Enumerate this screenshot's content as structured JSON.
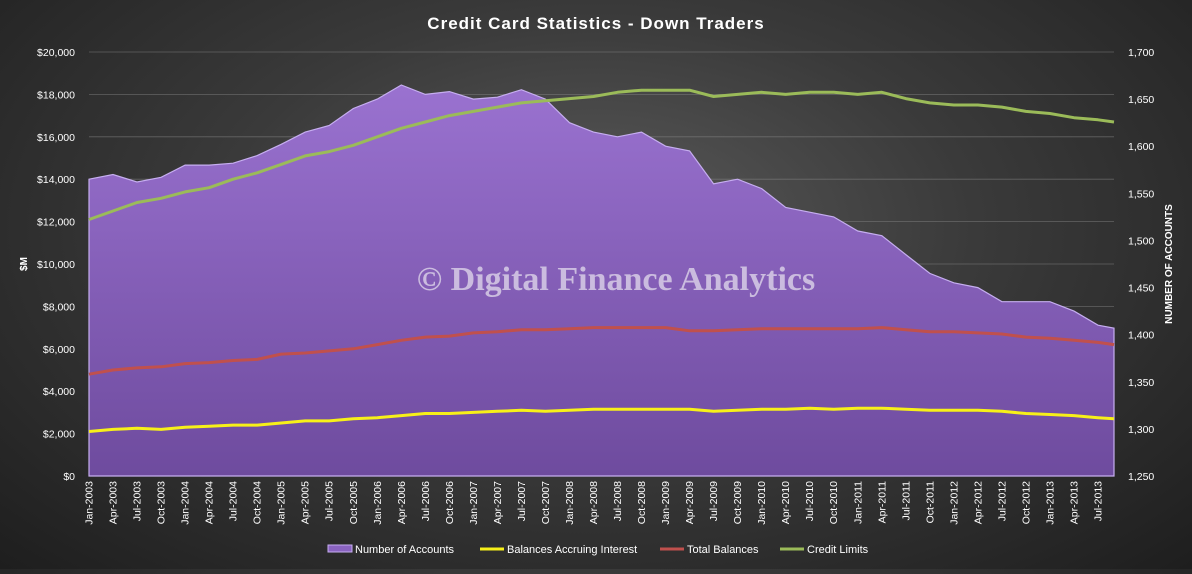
{
  "chart_data": {
    "type": "line",
    "title": "Credit Card Statistics  - Down Traders",
    "ylabel_left": "$M",
    "ylabel_right": "NUMBER OF ACCOUNTS",
    "ylim_left": [
      0,
      20000
    ],
    "ylim_right": [
      1250,
      1700
    ],
    "yticks_left": [
      "$0",
      "$2,000",
      "$4,000",
      "$6,000",
      "$8,000",
      "$10,000",
      "$12,000",
      "$14,000",
      "$16,000",
      "$18,000",
      "$20,000"
    ],
    "yticks_right": [
      "1,250",
      "1,300",
      "1,350",
      "1,400",
      "1,450",
      "1,500",
      "1,550",
      "1,600",
      "1,650",
      "1,700"
    ],
    "xticks": [
      "Jan-2003",
      "Apr-2003",
      "Jul-2003",
      "Oct-2003",
      "Jan-2004",
      "Apr-2004",
      "Jul-2004",
      "Oct-2004",
      "Jan-2005",
      "Apr-2005",
      "Jul-2005",
      "Oct-2005",
      "Jan-2006",
      "Apr-2006",
      "Jul-2006",
      "Oct-2006",
      "Jan-2007",
      "Apr-2007",
      "Jul-2007",
      "Oct-2007",
      "Jan-2008",
      "Apr-2008",
      "Jul-2008",
      "Oct-2008",
      "Jan-2009",
      "Apr-2009",
      "Jul-2009",
      "Oct-2009",
      "Jan-2010",
      "Apr-2010",
      "Jul-2010",
      "Oct-2010",
      "Jan-2011",
      "Apr-2011",
      "Jul-2011",
      "Oct-2011",
      "Jan-2012",
      "Apr-2012",
      "Jul-2012",
      "Oct-2012",
      "Jan-2013",
      "Apr-2013",
      "Jul-2013"
    ],
    "grid": true,
    "legend_position": "bottom",
    "watermark": "© Digital Finance Analytics",
    "series": [
      {
        "name": "Number of Accounts",
        "kind": "area",
        "axis": "right",
        "color": "#8a63c0",
        "points": [
          [
            "Jan-2003",
            1565
          ],
          [
            "Apr-2003",
            1570
          ],
          [
            "Jul-2003",
            1562
          ],
          [
            "Oct-2003",
            1567
          ],
          [
            "Jan-2004",
            1580
          ],
          [
            "Apr-2004",
            1580
          ],
          [
            "Jul-2004",
            1582
          ],
          [
            "Oct-2004",
            1590
          ],
          [
            "Jan-2005",
            1602
          ],
          [
            "Apr-2005",
            1615
          ],
          [
            "Jul-2005",
            1622
          ],
          [
            "Oct-2005",
            1640
          ],
          [
            "Jan-2006",
            1650
          ],
          [
            "Apr-2006",
            1665
          ],
          [
            "Jul-2006",
            1655
          ],
          [
            "Oct-2006",
            1658
          ],
          [
            "Jan-2007",
            1650
          ],
          [
            "Apr-2007",
            1652
          ],
          [
            "Jul-2007",
            1660
          ],
          [
            "Oct-2007",
            1650
          ],
          [
            "Jan-2008",
            1625
          ],
          [
            "Apr-2008",
            1615
          ],
          [
            "Jul-2008",
            1610
          ],
          [
            "Oct-2008",
            1615
          ],
          [
            "Jan-2009",
            1600
          ],
          [
            "Apr-2009",
            1595
          ],
          [
            "Jul-2009",
            1560
          ],
          [
            "Oct-2009",
            1565
          ],
          [
            "Jan-2010",
            1555
          ],
          [
            "Apr-2010",
            1535
          ],
          [
            "Jul-2010",
            1530
          ],
          [
            "Oct-2010",
            1525
          ],
          [
            "Jan-2011",
            1510
          ],
          [
            "Apr-2011",
            1505
          ],
          [
            "Jul-2011",
            1485
          ],
          [
            "Oct-2011",
            1465
          ],
          [
            "Jan-2012",
            1455
          ],
          [
            "Apr-2012",
            1450
          ],
          [
            "Jul-2012",
            1435
          ],
          [
            "Oct-2012",
            1435
          ],
          [
            "Jan-2013",
            1435
          ],
          [
            "Apr-2013",
            1425
          ],
          [
            "Jul-2013",
            1410
          ],
          [
            "Sep-2013",
            1407
          ]
        ]
      },
      {
        "name": "Balances Accruing Interest",
        "kind": "line",
        "axis": "left",
        "color": "#f7f019",
        "points": [
          [
            "Jan-2003",
            2100
          ],
          [
            "Apr-2003",
            2200
          ],
          [
            "Jul-2003",
            2250
          ],
          [
            "Oct-2003",
            2200
          ],
          [
            "Jan-2004",
            2300
          ],
          [
            "Apr-2004",
            2350
          ],
          [
            "Jul-2004",
            2400
          ],
          [
            "Oct-2004",
            2400
          ],
          [
            "Jan-2005",
            2500
          ],
          [
            "Apr-2005",
            2600
          ],
          [
            "Jul-2005",
            2600
          ],
          [
            "Oct-2005",
            2700
          ],
          [
            "Jan-2006",
            2750
          ],
          [
            "Apr-2006",
            2850
          ],
          [
            "Jul-2006",
            2950
          ],
          [
            "Oct-2006",
            2950
          ],
          [
            "Jan-2007",
            3000
          ],
          [
            "Apr-2007",
            3050
          ],
          [
            "Jul-2007",
            3100
          ],
          [
            "Oct-2007",
            3050
          ],
          [
            "Jan-2008",
            3100
          ],
          [
            "Apr-2008",
            3150
          ],
          [
            "Jul-2008",
            3150
          ],
          [
            "Oct-2008",
            3150
          ],
          [
            "Jan-2009",
            3150
          ],
          [
            "Apr-2009",
            3150
          ],
          [
            "Jul-2009",
            3050
          ],
          [
            "Oct-2009",
            3100
          ],
          [
            "Jan-2010",
            3150
          ],
          [
            "Apr-2010",
            3150
          ],
          [
            "Jul-2010",
            3200
          ],
          [
            "Oct-2010",
            3150
          ],
          [
            "Jan-2011",
            3200
          ],
          [
            "Apr-2011",
            3200
          ],
          [
            "Jul-2011",
            3150
          ],
          [
            "Oct-2011",
            3100
          ],
          [
            "Jan-2012",
            3100
          ],
          [
            "Apr-2012",
            3100
          ],
          [
            "Jul-2012",
            3050
          ],
          [
            "Oct-2012",
            2950
          ],
          [
            "Jan-2013",
            2900
          ],
          [
            "Apr-2013",
            2850
          ],
          [
            "Jul-2013",
            2750
          ],
          [
            "Sep-2013",
            2700
          ]
        ]
      },
      {
        "name": "Total Balances",
        "kind": "line",
        "axis": "left",
        "color": "#c0504d",
        "points": [
          [
            "Jan-2003",
            4800
          ],
          [
            "Apr-2003",
            5000
          ],
          [
            "Jul-2003",
            5100
          ],
          [
            "Oct-2003",
            5150
          ],
          [
            "Jan-2004",
            5300
          ],
          [
            "Apr-2004",
            5350
          ],
          [
            "Jul-2004",
            5450
          ],
          [
            "Oct-2004",
            5500
          ],
          [
            "Jan-2005",
            5750
          ],
          [
            "Apr-2005",
            5800
          ],
          [
            "Jul-2005",
            5900
          ],
          [
            "Oct-2005",
            6000
          ],
          [
            "Jan-2006",
            6200
          ],
          [
            "Apr-2006",
            6400
          ],
          [
            "Jul-2006",
            6550
          ],
          [
            "Oct-2006",
            6600
          ],
          [
            "Jan-2007",
            6750
          ],
          [
            "Apr-2007",
            6800
          ],
          [
            "Jul-2007",
            6900
          ],
          [
            "Oct-2007",
            6900
          ],
          [
            "Jan-2008",
            6950
          ],
          [
            "Apr-2008",
            7000
          ],
          [
            "Jul-2008",
            7000
          ],
          [
            "Oct-2008",
            7000
          ],
          [
            "Jan-2009",
            7000
          ],
          [
            "Apr-2009",
            6850
          ],
          [
            "Jul-2009",
            6850
          ],
          [
            "Oct-2009",
            6900
          ],
          [
            "Jan-2010",
            6950
          ],
          [
            "Apr-2010",
            6950
          ],
          [
            "Jul-2010",
            6950
          ],
          [
            "Oct-2010",
            6950
          ],
          [
            "Jan-2011",
            6950
          ],
          [
            "Apr-2011",
            7000
          ],
          [
            "Jul-2011",
            6900
          ],
          [
            "Oct-2011",
            6800
          ],
          [
            "Jan-2012",
            6800
          ],
          [
            "Apr-2012",
            6750
          ],
          [
            "Jul-2012",
            6700
          ],
          [
            "Oct-2012",
            6550
          ],
          [
            "Jan-2013",
            6500
          ],
          [
            "Apr-2013",
            6400
          ],
          [
            "Jul-2013",
            6300
          ],
          [
            "Sep-2013",
            6200
          ]
        ]
      },
      {
        "name": "Credit Limits",
        "kind": "line",
        "axis": "left",
        "color": "#9bbb59",
        "points": [
          [
            "Jan-2003",
            12100
          ],
          [
            "Apr-2003",
            12500
          ],
          [
            "Jul-2003",
            12900
          ],
          [
            "Oct-2003",
            13100
          ],
          [
            "Jan-2004",
            13400
          ],
          [
            "Apr-2004",
            13600
          ],
          [
            "Jul-2004",
            14000
          ],
          [
            "Oct-2004",
            14300
          ],
          [
            "Jan-2005",
            14700
          ],
          [
            "Apr-2005",
            15100
          ],
          [
            "Jul-2005",
            15300
          ],
          [
            "Oct-2005",
            15600
          ],
          [
            "Jan-2006",
            16000
          ],
          [
            "Apr-2006",
            16400
          ],
          [
            "Jul-2006",
            16700
          ],
          [
            "Oct-2006",
            17000
          ],
          [
            "Jan-2007",
            17200
          ],
          [
            "Apr-2007",
            17400
          ],
          [
            "Jul-2007",
            17600
          ],
          [
            "Oct-2007",
            17700
          ],
          [
            "Jan-2008",
            17800
          ],
          [
            "Apr-2008",
            17900
          ],
          [
            "Jul-2008",
            18100
          ],
          [
            "Oct-2008",
            18200
          ],
          [
            "Jan-2009",
            18200
          ],
          [
            "Apr-2009",
            18200
          ],
          [
            "Jul-2009",
            17900
          ],
          [
            "Oct-2009",
            18000
          ],
          [
            "Jan-2010",
            18100
          ],
          [
            "Apr-2010",
            18000
          ],
          [
            "Jul-2010",
            18100
          ],
          [
            "Oct-2010",
            18100
          ],
          [
            "Jan-2011",
            18000
          ],
          [
            "Apr-2011",
            18100
          ],
          [
            "Jul-2011",
            17800
          ],
          [
            "Oct-2011",
            17600
          ],
          [
            "Jan-2012",
            17500
          ],
          [
            "Apr-2012",
            17500
          ],
          [
            "Jul-2012",
            17400
          ],
          [
            "Oct-2012",
            17200
          ],
          [
            "Jan-2013",
            17100
          ],
          [
            "Apr-2013",
            16900
          ],
          [
            "Jul-2013",
            16800
          ],
          [
            "Sep-2013",
            16700
          ]
        ]
      }
    ]
  }
}
